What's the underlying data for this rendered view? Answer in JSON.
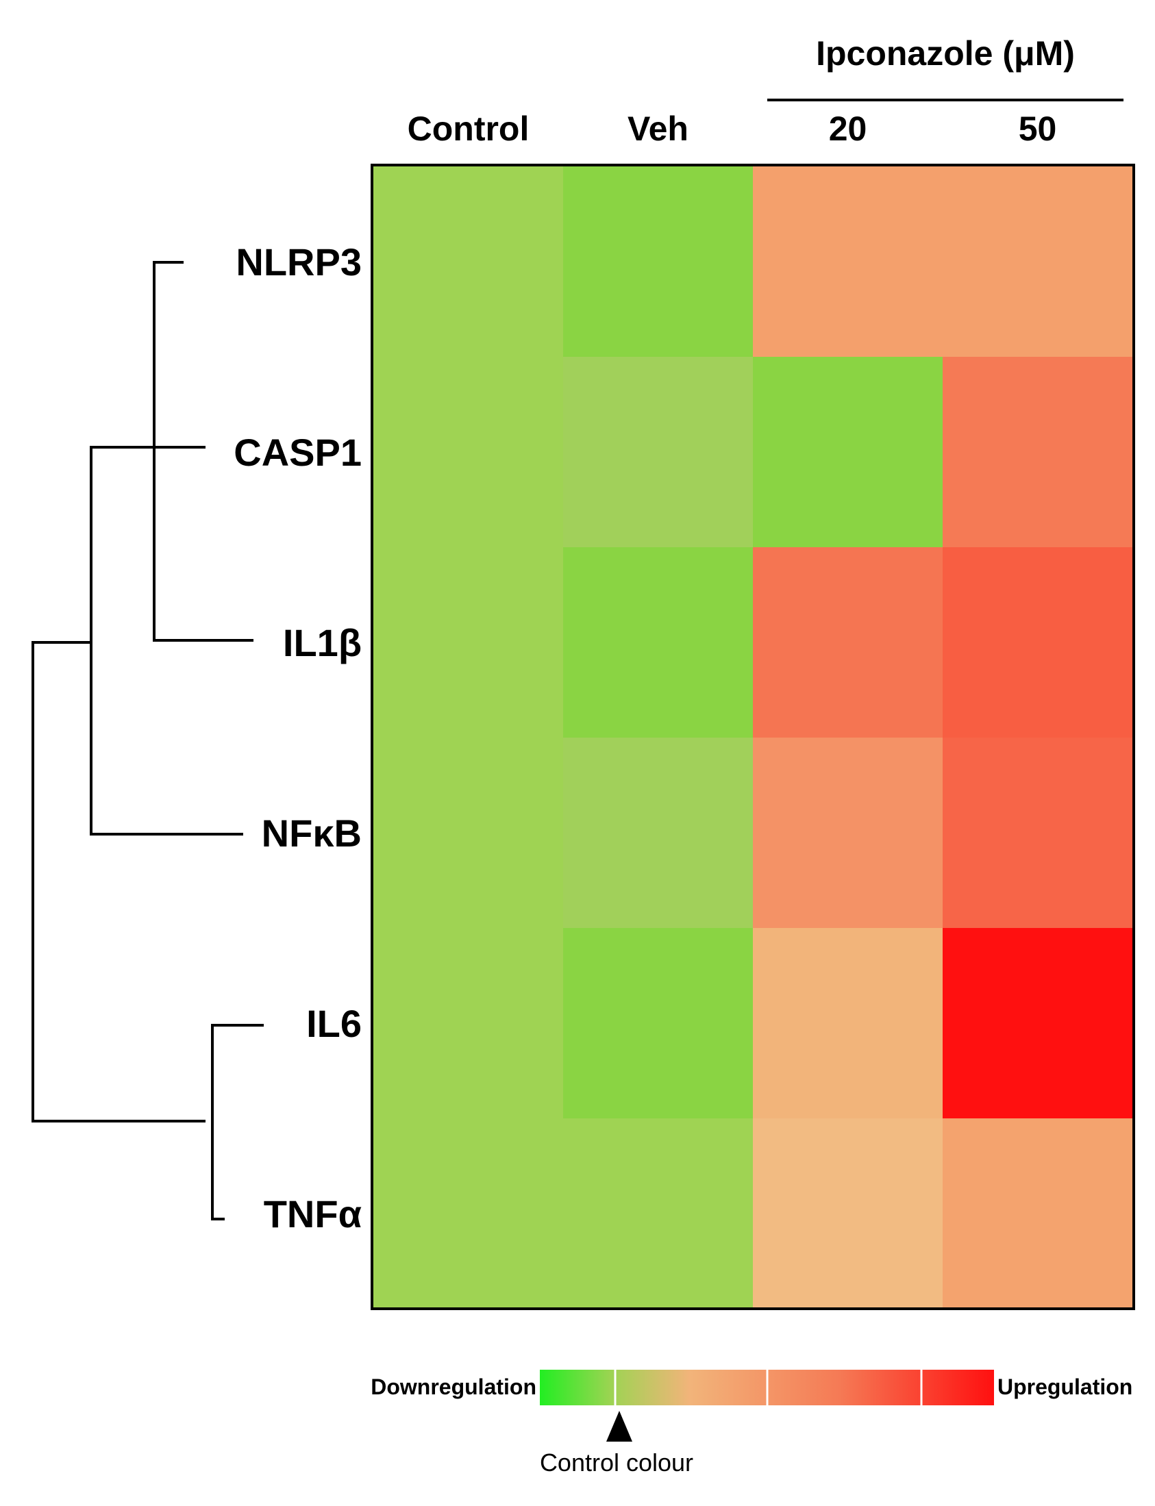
{
  "chart_data": {
    "type": "heatmap",
    "title": "",
    "group_label": "Ipconazole (μM)",
    "columns": [
      "Control",
      "Veh",
      "20",
      "50"
    ],
    "rows": [
      "NLRP3",
      "CASP1",
      "IL1β",
      "NFκB",
      "IL6",
      "TNFα"
    ],
    "cell_colors": [
      [
        "#9fd353",
        "#8ad443",
        "#f4a06c",
        "#f4a06c"
      ],
      [
        "#9fd353",
        "#a1d05a",
        "#8ad443",
        "#f57a55"
      ],
      [
        "#9fd353",
        "#8ad443",
        "#f57552",
        "#f85e42"
      ],
      [
        "#9fd353",
        "#a1d05a",
        "#f49266",
        "#f76548"
      ],
      [
        "#9fd353",
        "#8ad443",
        "#f2b47a",
        "#ff1010"
      ],
      [
        "#9fd353",
        "#9fd353",
        "#f2bb82",
        "#f4a36e"
      ]
    ],
    "legend": {
      "low_label": "Downregulation",
      "high_label": "Upregulation",
      "marker_label": "Control colour",
      "scale_colors": [
        "#22ee22",
        "#9fd353",
        "#f2b47a",
        "#f57a55",
        "#ff1010"
      ]
    }
  }
}
